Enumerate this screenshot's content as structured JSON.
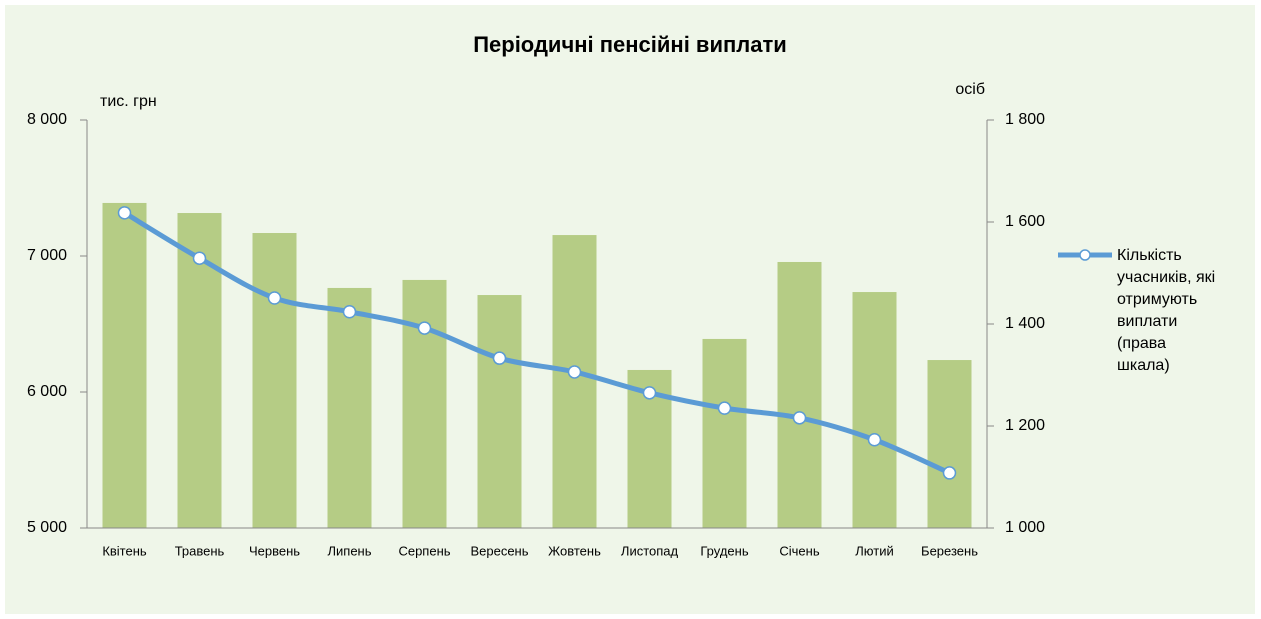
{
  "chart_data": {
    "type": "bar+line",
    "title": "Періодичні пенсійні виплати",
    "y_label": "тис. грн",
    "y2_label": "осіб",
    "categories": [
      "Квітень",
      "Травень",
      "Червень",
      "Липень",
      "Серпень",
      "Вересень",
      "Жовтень",
      "Листопад",
      "Грудень",
      "Січень",
      "Лютий",
      "Березень"
    ],
    "series": [
      {
        "type": "bar",
        "color": "#b5cc85",
        "values": [
          7390,
          7316,
          7169,
          6765,
          6824,
          6713,
          7154,
          6162,
          6390,
          6956,
          6735,
          6235
        ]
      },
      {
        "type": "line",
        "name": "Кількість учасників, які отримують виплати (права шкала)",
        "color": "#5b9bd5",
        "axis": "y2",
        "values": [
          1618,
          1529,
          1451,
          1424,
          1392,
          1333,
          1306,
          1265,
          1235,
          1216,
          1173,
          1108
        ]
      }
    ],
    "ylim": [
      5000,
      8000
    ],
    "yticks": [
      {
        "value": 5000,
        "label": "5 000"
      },
      {
        "value": 6000,
        "label": "6 000"
      },
      {
        "value": 7000,
        "label": "7 000"
      },
      {
        "value": 8000,
        "label": "8 000"
      }
    ],
    "y2lim": [
      1000,
      1800
    ],
    "y2ticks": [
      {
        "value": 1000,
        "label": "1 000"
      },
      {
        "value": 1200,
        "label": "1 200"
      },
      {
        "value": 1400,
        "label": "1 400"
      },
      {
        "value": 1600,
        "label": "1 600"
      },
      {
        "value": 1800,
        "label": "1 800"
      }
    ],
    "legend": "right"
  }
}
